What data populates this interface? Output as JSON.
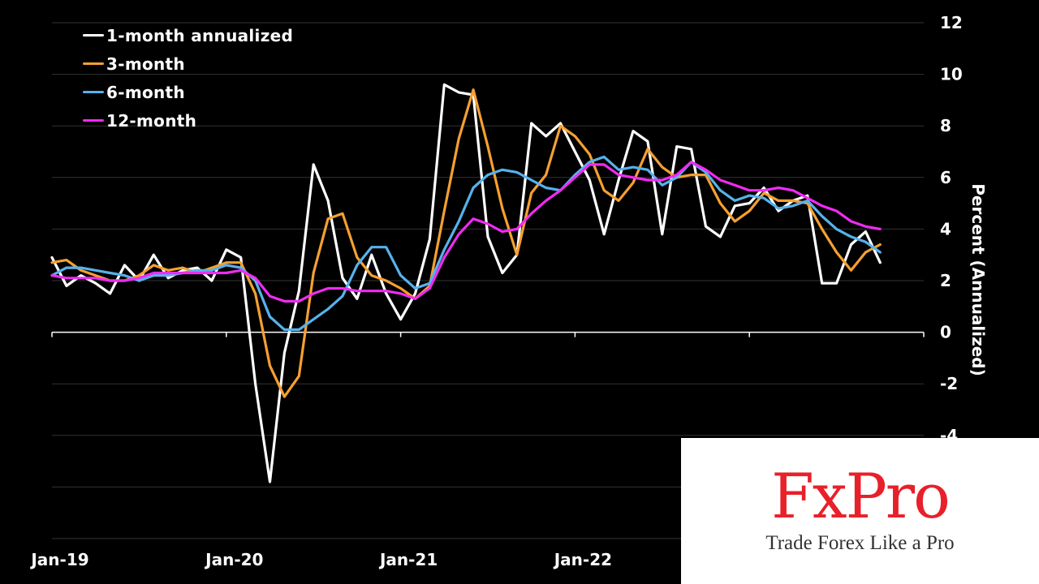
{
  "chart_data": {
    "type": "line",
    "ylabel": "Percent (Annualized)",
    "ylim": [
      -8,
      12
    ],
    "yticks": [
      12,
      10,
      8,
      6,
      4,
      2,
      0,
      -2,
      -4
    ],
    "x_start": "Jan-19",
    "x_tick_labels": [
      "Jan-19",
      "Jan-20",
      "Jan-21",
      "Jan-22"
    ],
    "grid": true,
    "legend_position": "top-left",
    "series": [
      {
        "name": "1-month annualized",
        "color": "#ffffff",
        "values": [
          2.9,
          1.8,
          2.2,
          1.9,
          1.5,
          2.6,
          2.0,
          3.0,
          2.1,
          2.4,
          2.5,
          2.0,
          3.2,
          2.9,
          -2.0,
          -5.8,
          -0.8,
          1.6,
          6.5,
          5.1,
          2.1,
          1.3,
          3.0,
          1.5,
          0.5,
          1.5,
          3.6,
          9.6,
          9.3,
          9.2,
          3.7,
          2.3,
          3.0,
          8.1,
          7.6,
          8.1,
          7.0,
          5.9,
          3.8,
          5.9,
          7.8,
          7.4,
          3.8,
          7.2,
          7.1,
          4.1,
          3.7,
          4.9,
          5.0,
          5.6,
          4.7,
          5.1,
          5.3,
          1.9,
          1.9,
          3.4,
          3.9,
          2.7
        ]
      },
      {
        "name": "3-month",
        "color": "#f5a031",
        "values": [
          2.7,
          2.8,
          2.4,
          2.2,
          2.0,
          2.0,
          2.2,
          2.6,
          2.4,
          2.5,
          2.3,
          2.5,
          2.7,
          2.7,
          1.5,
          -1.3,
          -2.5,
          -1.7,
          2.3,
          4.4,
          4.6,
          2.9,
          2.2,
          2.0,
          1.7,
          1.3,
          1.8,
          4.7,
          7.5,
          9.4,
          7.2,
          4.8,
          3.0,
          5.4,
          6.1,
          8.0,
          7.6,
          6.9,
          5.5,
          5.1,
          5.8,
          7.1,
          6.4,
          6.0,
          6.1,
          6.1,
          5.0,
          4.3,
          4.7,
          5.4,
          5.1,
          5.1,
          5.0,
          4.0,
          3.1,
          2.4,
          3.1,
          3.4
        ]
      },
      {
        "name": "6-month",
        "color": "#56b2ec",
        "values": [
          2.2,
          2.5,
          2.5,
          2.4,
          2.3,
          2.2,
          2.0,
          2.2,
          2.2,
          2.3,
          2.4,
          2.4,
          2.6,
          2.5,
          2.0,
          0.6,
          0.1,
          0.1,
          0.5,
          0.9,
          1.4,
          2.6,
          3.3,
          3.3,
          2.2,
          1.7,
          1.9,
          3.2,
          4.3,
          5.6,
          6.1,
          6.3,
          6.2,
          5.9,
          5.6,
          5.5,
          6.1,
          6.6,
          6.8,
          6.3,
          6.4,
          6.3,
          5.7,
          6.0,
          6.6,
          6.2,
          5.5,
          5.1,
          5.3,
          5.2,
          4.8,
          4.9,
          5.1,
          4.5,
          4.0,
          3.7,
          3.5,
          3.1
        ]
      },
      {
        "name": "12-month",
        "color": "#f02bf2",
        "values": [
          2.2,
          2.1,
          2.1,
          2.1,
          2.0,
          2.0,
          2.1,
          2.3,
          2.3,
          2.3,
          2.3,
          2.3,
          2.3,
          2.4,
          2.1,
          1.4,
          1.2,
          1.2,
          1.5,
          1.7,
          1.7,
          1.6,
          1.6,
          1.6,
          1.5,
          1.3,
          1.7,
          2.9,
          3.8,
          4.4,
          4.2,
          3.9,
          4.0,
          4.6,
          5.1,
          5.5,
          6.0,
          6.5,
          6.5,
          6.1,
          6.0,
          5.9,
          5.9,
          6.1,
          6.6,
          6.3,
          5.9,
          5.7,
          5.5,
          5.5,
          5.6,
          5.5,
          5.2,
          4.9,
          4.7,
          4.3,
          4.1,
          4.0
        ]
      }
    ]
  },
  "logo": {
    "wordmark": "FxPro",
    "tagline": "Trade Forex Like a Pro"
  }
}
